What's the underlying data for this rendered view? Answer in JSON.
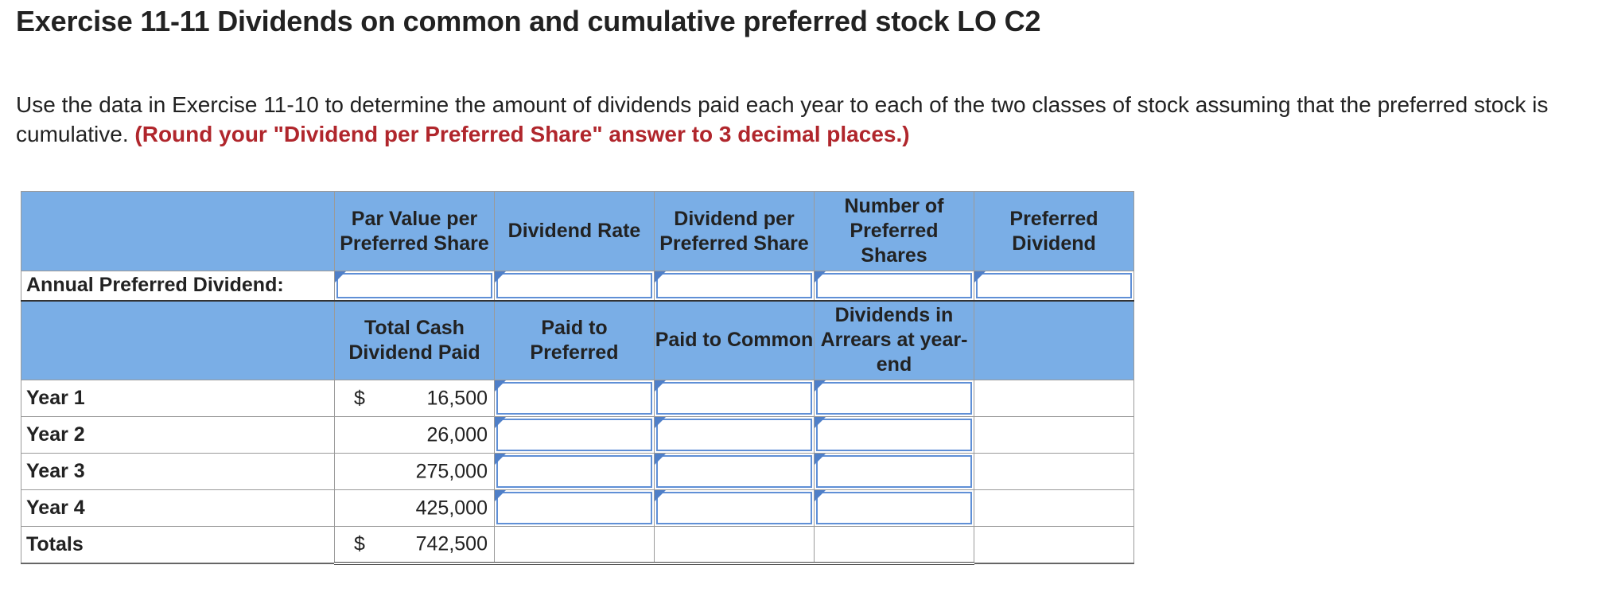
{
  "title": "Exercise 11-11 Dividends on common and cumulative preferred stock LO C2",
  "instructions": {
    "text": "Use the data in Exercise 11-10 to determine the amount of dividends paid each year to each of the two classes of stock assuming that the preferred stock is cumulative.",
    "note": "(Round your \"Dividend per Preferred Share\" answer to 3 decimal places.)"
  },
  "table": {
    "header1": [
      "Par Value per Preferred Share",
      "Dividend Rate",
      "Dividend per Preferred Share",
      "Number of Preferred Shares",
      "Preferred Dividend"
    ],
    "annual_label": "Annual Preferred Dividend:",
    "header2": [
      "Total Cash Dividend Paid",
      "Paid to Preferred",
      "Paid to Common",
      "Dividends in Arrears at year-end"
    ],
    "currency": "$",
    "rows": [
      {
        "label": "Year 1",
        "cash": "16,500",
        "show_dollar": true
      },
      {
        "label": "Year 2",
        "cash": "26,000",
        "show_dollar": false
      },
      {
        "label": "Year 3",
        "cash": "275,000",
        "show_dollar": false
      },
      {
        "label": "Year 4",
        "cash": "425,000",
        "show_dollar": false
      }
    ],
    "totals": {
      "label": "Totals",
      "cash": "742,500"
    }
  },
  "colors": {
    "header_bg": "#7aaee6",
    "note_red": "#b0262c",
    "input_border": "#5f8fd6"
  }
}
